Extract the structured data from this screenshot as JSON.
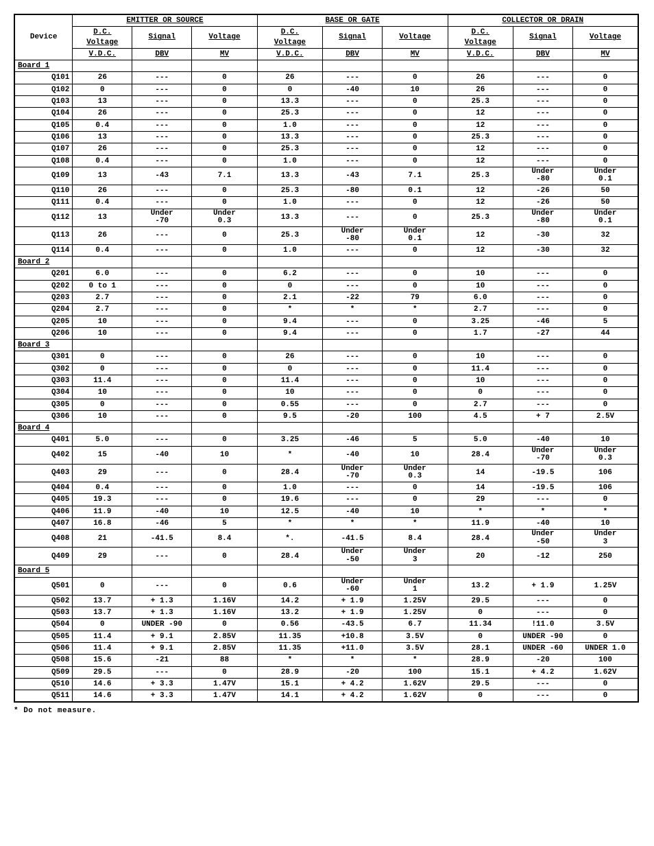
{
  "header": {
    "group1": "EMITTER OR SOURCE",
    "group2": "BASE OR GATE",
    "group3": "COLLECTOR OR DRAIN",
    "device": "Device",
    "dc": "D.C.",
    "voltage": "Voltage",
    "signal": "Signal",
    "voltage2": "Voltage",
    "vdc": "V.D.C.",
    "dbv": "DBV",
    "mv": "MV"
  },
  "boards": [
    {
      "label": "Board 1"
    },
    {
      "label": "Board 2"
    },
    {
      "label": "Board 3"
    },
    {
      "label": "Board 4"
    },
    {
      "label": "Board 5"
    }
  ],
  "rows": [
    [
      "board",
      0
    ],
    [
      "Q101",
      "26",
      "---",
      "0",
      "26",
      "---",
      "0",
      "26",
      "---",
      "0"
    ],
    [
      "Q102",
      "0",
      "---",
      "0",
      "0",
      "-40",
      "10",
      "26",
      "---",
      "0"
    ],
    [
      "Q103",
      "13",
      "---",
      "0",
      "13.3",
      "---",
      "0",
      "25.3",
      "---",
      "0"
    ],
    [
      "Q104",
      "26",
      "---",
      "0",
      "25.3",
      "---",
      "0",
      "12",
      "---",
      "0"
    ],
    [
      "Q105",
      "0.4",
      "---",
      "0",
      "1.0",
      "---",
      "0",
      "12",
      "---",
      "0"
    ],
    [
      "Q106",
      "13",
      "---",
      "0",
      "13.3",
      "---",
      "0",
      "25.3",
      "---",
      "0"
    ],
    [
      "Q107",
      "26",
      "---",
      "0",
      "25.3",
      "---",
      "0",
      "12",
      "---",
      "0"
    ],
    [
      "Q108",
      "0.4",
      "---",
      "0",
      "1.0",
      "---",
      "0",
      "12",
      "---",
      "0"
    ],
    [
      "Q109",
      "13",
      "-43",
      "7.1",
      "13.3",
      "-43",
      "7.1",
      "25.3",
      "Under\n-80",
      "Under\n0.1"
    ],
    [
      "Q110",
      "26",
      "---",
      "0",
      "25.3",
      "-80",
      "0.1",
      "12",
      "-26",
      "50"
    ],
    [
      "Q111",
      "0.4",
      "---",
      "0",
      "1.0",
      "---",
      "0",
      "12",
      "-26",
      "50"
    ],
    [
      "Q112",
      "13",
      "Under\n-70",
      "Under\n0.3",
      "13.3",
      "---",
      "0",
      "25.3",
      "Under\n-80",
      "Under\n0.1"
    ],
    [
      "Q113",
      "26",
      "---",
      "0",
      "25.3",
      "Under\n-80",
      "Under\n0.1",
      "12",
      "-30",
      "32"
    ],
    [
      "Q114",
      "0.4",
      "---",
      "0",
      "1.0",
      "---",
      "0",
      "12",
      "-30",
      "32"
    ],
    [
      "board",
      1
    ],
    [
      "Q201",
      "6.0",
      "---",
      "0",
      "6.2",
      "---",
      "0",
      "10",
      "---",
      "0"
    ],
    [
      "Q202",
      "0 to 1",
      "---",
      "0",
      "0",
      "---",
      "0",
      "10",
      "---",
      "0"
    ],
    [
      "Q203",
      "2.7",
      "---",
      "0",
      "2.1",
      "-22",
      "79",
      "6.0",
      "---",
      "0"
    ],
    [
      "Q204",
      "2.7",
      "---",
      "0",
      "*",
      "*",
      "*",
      "2.7",
      "---",
      "0"
    ],
    [
      "Q205",
      "10",
      "---",
      "0",
      "9.4",
      "---",
      "0",
      "3.25",
      "-46",
      "5"
    ],
    [
      "Q206",
      "10",
      "---",
      "0",
      "9.4",
      "---",
      "0",
      "1.7",
      "-27",
      "44"
    ],
    [
      "board",
      2
    ],
    [
      "Q301",
      "0",
      "---",
      "0",
      "26",
      "---",
      "0",
      "10",
      "---",
      "0"
    ],
    [
      "Q302",
      "0",
      "---",
      "0",
      "0",
      "---",
      "0",
      "11.4",
      "---",
      "0"
    ],
    [
      "Q303",
      "11.4",
      "---",
      "0",
      "11.4",
      "---",
      "0",
      "10",
      "---",
      "0"
    ],
    [
      "Q304",
      "10",
      "---",
      "0",
      "10",
      "---",
      "0",
      "0",
      "---",
      "0"
    ],
    [
      "Q305",
      "0",
      "---",
      "0",
      "0.55",
      "---",
      "0",
      "2.7",
      "---",
      "0"
    ],
    [
      "Q306",
      "10",
      "---",
      "0",
      "9.5",
      "-20",
      "100",
      "4.5",
      "+ 7",
      "2.5V"
    ],
    [
      "board",
      3
    ],
    [
      "Q401",
      "5.0",
      "---",
      "0",
      "3.25",
      "-46",
      "5",
      "5.0",
      "-40",
      "10"
    ],
    [
      "Q402",
      "15",
      "-40",
      "10",
      "*",
      "-40",
      "10",
      "28.4",
      "Under\n-70",
      "Under\n0.3"
    ],
    [
      "Q403",
      "29",
      "---",
      "0",
      "28.4",
      "Under\n-70",
      "Under\n0.3",
      "14",
      "-19.5",
      "106"
    ],
    [
      "Q404",
      "0.4",
      "---",
      "0",
      "1.0",
      "---",
      "0",
      "14",
      "-19.5",
      "106"
    ],
    [
      "Q405",
      "19.3",
      "---",
      "0",
      "19.6",
      "---",
      "0",
      "29",
      "---",
      "0"
    ],
    [
      "Q406",
      "11.9",
      "-40",
      "10",
      "12.5",
      "-40",
      "10",
      "*",
      "*",
      "*"
    ],
    [
      "Q407",
      "16.8",
      "-46",
      "5",
      "*",
      "*",
      "*",
      "11.9",
      "-40",
      "10"
    ],
    [
      "Q408",
      "21",
      "-41.5",
      "8.4",
      "*.",
      "-41.5",
      "8.4",
      "28.4",
      "Under\n-50",
      "Under\n3"
    ],
    [
      "Q409",
      "29",
      "---",
      "0",
      "28.4",
      "Under\n-50",
      "Under\n3",
      "20",
      "-12",
      "250"
    ],
    [
      "board",
      4
    ],
    [
      "Q501",
      "0",
      "---",
      "0",
      "0.6",
      "Under\n-60",
      "Under\n1",
      "13.2",
      "+ 1.9",
      "1.25V"
    ],
    [
      "Q502",
      "13.7",
      "+ 1.3",
      "1.16V",
      "14.2",
      "+ 1.9",
      "1.25V",
      "29.5",
      "---",
      "0"
    ],
    [
      "Q503",
      "13.7",
      "+ 1.3",
      "1.16V",
      "13.2",
      "+ 1.9",
      "1.25V",
      "0",
      "---",
      "0"
    ],
    [
      "Q504",
      "0",
      "UNDER -90",
      "0",
      "0.56",
      "-43.5",
      "6.7",
      "11.34",
      "!11.0",
      "3.5V"
    ],
    [
      "Q505",
      "11.4",
      "+ 9.1",
      "2.85V",
      "11.35",
      "+10.8",
      "3.5V",
      "0",
      "UNDER -90",
      "0"
    ],
    [
      "Q506",
      "11.4",
      "+ 9.1",
      "2.85V",
      "11.35",
      "+11.0",
      "3.5V",
      "28.1",
      "UNDER -60",
      "UNDER 1.0"
    ],
    [
      "Q508",
      "15.6",
      "-21",
      "88",
      "*",
      "*",
      "*",
      "28.9",
      "-20",
      "100"
    ],
    [
      "Q509",
      "29.5",
      "---",
      "0",
      "28.9",
      "-20",
      "100",
      "15.1",
      "+ 4.2",
      "1.62V"
    ],
    [
      "Q510",
      "14.6",
      "+ 3.3",
      "1.47V",
      "15.1",
      "+ 4.2",
      "1.62V",
      "29.5",
      "---",
      "0"
    ],
    [
      "Q511",
      "14.6",
      "+ 3.3",
      "1.47V",
      "14.1",
      "+ 4.2",
      "1.62V",
      "0",
      "---",
      "0"
    ]
  ],
  "footnote": "* Do not measure."
}
